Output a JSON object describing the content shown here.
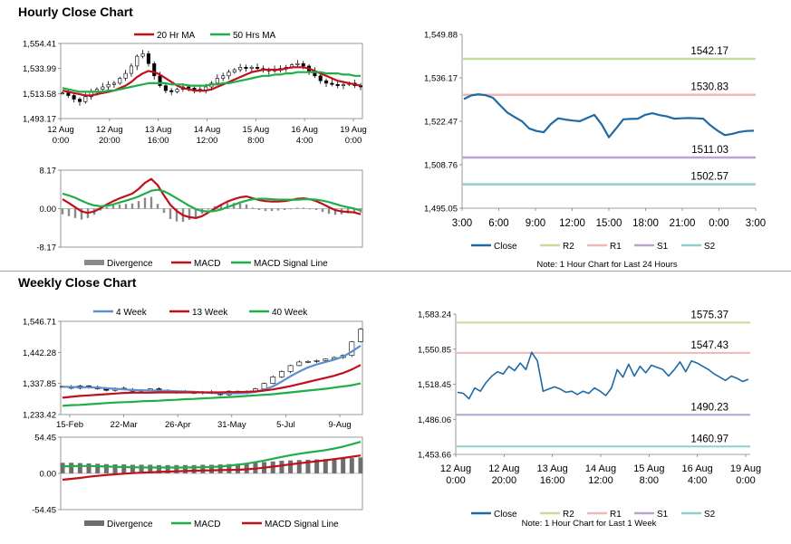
{
  "sections": {
    "hourly_title": "Hourly Close Chart",
    "weekly_title": "Weekly Close Chart"
  },
  "colors": {
    "close": "#1f6aa5",
    "ma20": "#c0101b",
    "ma50": "#1fae47",
    "r2": "#c6dc9a",
    "r1": "#efb7b5",
    "s1": "#b8a6cf",
    "s2": "#8fd0cc",
    "macd": "#c0101b",
    "signal": "#1fae47",
    "divergence": "#8a8a8a",
    "candle": "#000000",
    "grid": "#cfcfcf"
  },
  "chart_data": [
    {
      "id": "hourly_price",
      "type": "candlestick",
      "legend": [
        "20 Hr MA",
        "50 Hrs MA"
      ],
      "y_ticks": [
        "1,554.41",
        "1,533.99",
        "1,513.58",
        "1,493.17"
      ],
      "ylim": [
        1493.17,
        1554.41
      ],
      "x_labels": [
        [
          "12 Aug",
          "0:00"
        ],
        [
          "12 Aug",
          "20:00"
        ],
        [
          "13 Aug",
          "16:00"
        ],
        [
          "14 Aug",
          "12:00"
        ],
        [
          "15 Aug",
          "8:00"
        ],
        [
          "16 Aug",
          "4:00"
        ],
        [
          "19 Aug",
          "0:00"
        ]
      ],
      "close": [
        1514,
        1512,
        1509,
        1507,
        1511,
        1515,
        1517,
        1519,
        1521,
        1522,
        1526,
        1530,
        1536,
        1544,
        1546,
        1538,
        1528,
        1520,
        1516,
        1515,
        1517,
        1519,
        1518,
        1517,
        1516,
        1519,
        1522,
        1526,
        1528,
        1531,
        1533,
        1535,
        1534,
        1535,
        1534,
        1533,
        1532,
        1533,
        1534,
        1535,
        1537,
        1538,
        1536,
        1532,
        1528,
        1524,
        1522,
        1521,
        1520,
        1521,
        1522,
        1520,
        1519
      ],
      "ma20": [
        1516,
        1515,
        1514,
        1513,
        1512,
        1512,
        1513,
        1514,
        1515,
        1516,
        1518,
        1520,
        1523,
        1527,
        1530,
        1532,
        1531,
        1529,
        1526,
        1523,
        1520,
        1518,
        1517,
        1516,
        1516,
        1516,
        1517,
        1519,
        1521,
        1523,
        1525,
        1527,
        1529,
        1531,
        1532,
        1533,
        1533,
        1533,
        1533,
        1534,
        1535,
        1535,
        1535,
        1534,
        1532,
        1530,
        1528,
        1526,
        1524,
        1523,
        1522,
        1521,
        1520
      ],
      "ma50": [
        1518,
        1517,
        1516,
        1515,
        1515,
        1515,
        1515,
        1515,
        1516,
        1516,
        1517,
        1518,
        1519,
        1520,
        1521,
        1522,
        1522,
        1522,
        1522,
        1521,
        1521,
        1521,
        1520,
        1520,
        1520,
        1520,
        1521,
        1521,
        1522,
        1522,
        1523,
        1524,
        1525,
        1526,
        1527,
        1528,
        1528,
        1529,
        1529,
        1530,
        1530,
        1531,
        1531,
        1531,
        1531,
        1531,
        1530,
        1530,
        1530,
        1529,
        1529,
        1528,
        1528
      ]
    },
    {
      "id": "hourly_macd",
      "type": "macd",
      "legend": [
        "Divergence",
        "MACD",
        "MACD Signal Line"
      ],
      "y_ticks": [
        "8.17",
        "0.00",
        "-8.17"
      ],
      "ylim": [
        -8.17,
        8.17
      ],
      "macd": [
        2.0,
        1.2,
        0.3,
        -0.6,
        -0.9,
        -0.6,
        0.1,
        0.9,
        1.6,
        2.2,
        2.7,
        3.2,
        4.2,
        5.5,
        6.3,
        5.0,
        2.8,
        0.8,
        -0.5,
        -1.4,
        -1.8,
        -2.0,
        -1.6,
        -0.8,
        0.0,
        0.8,
        1.5,
        2.0,
        2.4,
        2.6,
        2.2,
        1.8,
        1.6,
        1.5,
        1.5,
        1.6,
        1.8,
        2.1,
        2.2,
        2.0,
        1.6,
        1.0,
        0.3,
        -0.3,
        -0.6,
        -0.7,
        -0.8,
        -1.2
      ],
      "signal": [
        3.2,
        2.8,
        2.3,
        1.7,
        1.1,
        0.7,
        0.5,
        0.6,
        0.9,
        1.3,
        1.7,
        2.1,
        2.6,
        3.2,
        3.8,
        4.0,
        3.7,
        3.0,
        2.2,
        1.4,
        0.6,
        -0.1,
        -0.5,
        -0.6,
        -0.5,
        -0.2,
        0.3,
        0.8,
        1.3,
        1.7,
        2.0,
        2.1,
        2.1,
        2.0,
        1.9,
        1.9,
        1.9,
        1.9,
        2.0,
        2.0,
        1.9,
        1.7,
        1.4,
        1.0,
        0.6,
        0.3,
        0.0,
        -0.4
      ]
    },
    {
      "id": "hourly_levels",
      "type": "line",
      "y_ticks": [
        "1,549.88",
        "1,536.17",
        "1,522.47",
        "1,508.76",
        "1,495.05"
      ],
      "ylim": [
        1495.05,
        1549.88
      ],
      "x_labels": [
        "3:00",
        "6:00",
        "9:00",
        "12:00",
        "15:00",
        "18:00",
        "21:00",
        "0:00",
        "3:00"
      ],
      "close": [
        1529.5,
        1530.6,
        1531.0,
        1530.7,
        1529.9,
        1527.5,
        1525.2,
        1523.8,
        1522.5,
        1520.2,
        1519.4,
        1519.0,
        1521.6,
        1523.4,
        1523.0,
        1522.7,
        1522.5,
        1523.5,
        1524.5,
        1521.5,
        1517.4,
        1520.2,
        1523.1,
        1523.2,
        1523.3,
        1524.5,
        1525.0,
        1524.4,
        1524.0,
        1523.3,
        1523.4,
        1523.5,
        1523.4,
        1523.3,
        1521.2,
        1519.5,
        1518.1,
        1518.5,
        1519.1,
        1519.4,
        1519.5
      ],
      "levels": {
        "R2": 1542.17,
        "R1": 1530.83,
        "S1": 1511.03,
        "S2": 1502.57
      },
      "level_labels": {
        "R2": "1542.17",
        "R1": "1530.83",
        "S1": "1511.03",
        "S2": "1502.57"
      },
      "legend": [
        "Close",
        "R2",
        "R1",
        "S1",
        "S2"
      ],
      "note": "Note: 1 Hour Chart for Last 24 Hours"
    },
    {
      "id": "weekly_price",
      "type": "candlestick",
      "legend": [
        "4 Week",
        "13 Week",
        "40 Week"
      ],
      "y_ticks": [
        "1,546.71",
        "1,442.28",
        "1,337.85",
        "1,233.42"
      ],
      "ylim": [
        1233.42,
        1546.71
      ],
      "x_labels": [
        "15-Feb",
        "22-Mar",
        "26-Apr",
        "31-May",
        "5-Jul",
        "9-Aug"
      ],
      "close": [
        1328,
        1322,
        1330,
        1326,
        1320,
        1315,
        1322,
        1318,
        1312,
        1316,
        1320,
        1315,
        1309,
        1311,
        1308,
        1306,
        1310,
        1305,
        1300,
        1312,
        1305,
        1310,
        1320,
        1338,
        1360,
        1378,
        1398,
        1410,
        1412,
        1415,
        1420,
        1425,
        1432,
        1478,
        1520
      ],
      "ma4": [
        1327,
        1326,
        1326,
        1325,
        1324,
        1322,
        1320,
        1318,
        1316,
        1315,
        1314,
        1314,
        1313,
        1312,
        1311,
        1310,
        1308,
        1306,
        1305,
        1305,
        1305,
        1306,
        1310,
        1317,
        1328,
        1344,
        1362,
        1378,
        1392,
        1402,
        1410,
        1418,
        1428,
        1445,
        1465
      ],
      "ma13": [
        1290,
        1293,
        1296,
        1298,
        1300,
        1302,
        1304,
        1306,
        1307,
        1307,
        1307,
        1308,
        1308,
        1308,
        1308,
        1308,
        1308,
        1308,
        1308,
        1309,
        1309,
        1310,
        1311,
        1314,
        1318,
        1323,
        1329,
        1336,
        1343,
        1350,
        1357,
        1364,
        1373,
        1385,
        1400
      ],
      "ma40": [
        1263,
        1265,
        1266,
        1268,
        1270,
        1272,
        1274,
        1275,
        1276,
        1278,
        1279,
        1280,
        1282,
        1283,
        1285,
        1286,
        1288,
        1289,
        1291,
        1292,
        1294,
        1296,
        1298,
        1300,
        1302,
        1305,
        1308,
        1311,
        1314,
        1317,
        1320,
        1324,
        1328,
        1332,
        1338
      ]
    },
    {
      "id": "weekly_macd",
      "type": "macd",
      "legend": [
        "Divergence",
        "MACD",
        "MACD Signal Line"
      ],
      "y_ticks": [
        "54.45",
        "0.00",
        "-54.45"
      ],
      "ylim": [
        -54.45,
        54.45
      ],
      "macd": [
        10.5,
        10.9,
        11.1,
        11.1,
        10.8,
        10.4,
        9.9,
        9.5,
        9.2,
        9.0,
        8.9,
        8.8,
        8.8,
        8.8,
        8.9,
        9.0,
        9.2,
        9.6,
        10.4,
        11.6,
        13.0,
        14.7,
        16.9,
        19.3,
        22.0,
        24.8,
        27.4,
        29.6,
        31.4,
        33.2,
        35.0,
        37.4,
        40.3,
        43.9,
        47.5
      ],
      "signal": [
        -9.5,
        -8.2,
        -6.8,
        -5.1,
        -3.7,
        -2.5,
        -1.4,
        -0.4,
        0.4,
        1.1,
        1.7,
        2.2,
        2.7,
        3.1,
        3.5,
        3.9,
        4.3,
        4.6,
        4.9,
        5.2,
        5.5,
        6.1,
        7.2,
        8.6,
        10.2,
        11.9,
        13.6,
        15.2,
        16.7,
        18.2,
        19.8,
        21.5,
        23.2,
        25.1,
        27.0
      ],
      "divergence": [
        16,
        16,
        15.5,
        15,
        14.5,
        14,
        13.5,
        13.5,
        13,
        13,
        13,
        12.5,
        12.5,
        12.5,
        12.5,
        12.5,
        13,
        13,
        13.5,
        14,
        14.5,
        15,
        16,
        17,
        18,
        19,
        19.5,
        20,
        20.5,
        21,
        21.5,
        22,
        22.5,
        23,
        24
      ]
    },
    {
      "id": "weekly_levels",
      "type": "line",
      "y_ticks": [
        "1,583.24",
        "1,550.85",
        "1,518.45",
        "1,486.06",
        "1,453.66"
      ],
      "ylim": [
        1453.66,
        1583.24
      ],
      "x_labels": [
        [
          "12 Aug",
          "0:00"
        ],
        [
          "12 Aug",
          "20:00"
        ],
        [
          "13 Aug",
          "16:00"
        ],
        [
          "14 Aug",
          "12:00"
        ],
        [
          "15 Aug",
          "8:00"
        ],
        [
          "16 Aug",
          "4:00"
        ],
        [
          "19 Aug",
          "0:00"
        ]
      ],
      "close": [
        1511,
        1510,
        1505,
        1515,
        1512,
        1520,
        1526,
        1530,
        1528,
        1535,
        1531,
        1538,
        1532,
        1548,
        1540,
        1512,
        1514,
        1516,
        1514,
        1511,
        1512,
        1509,
        1512,
        1510,
        1515,
        1512,
        1508,
        1515,
        1532,
        1525,
        1537,
        1526,
        1535,
        1529,
        1536,
        1534,
        1532,
        1526,
        1532,
        1539,
        1530,
        1540,
        1538,
        1535,
        1532,
        1528,
        1525,
        1522,
        1526,
        1524,
        1521,
        1523
      ],
      "levels": {
        "R2": 1575.37,
        "R1": 1547.43,
        "S1": 1490.23,
        "S2": 1460.97
      },
      "level_labels": {
        "R2": "1575.37",
        "R1": "1547.43",
        "S1": "1490.23",
        "S2": "1460.97"
      },
      "legend": [
        "Close",
        "R2",
        "R1",
        "S1",
        "S2"
      ],
      "note": "Note: 1 Hour Chart for Last 1 Week"
    }
  ]
}
